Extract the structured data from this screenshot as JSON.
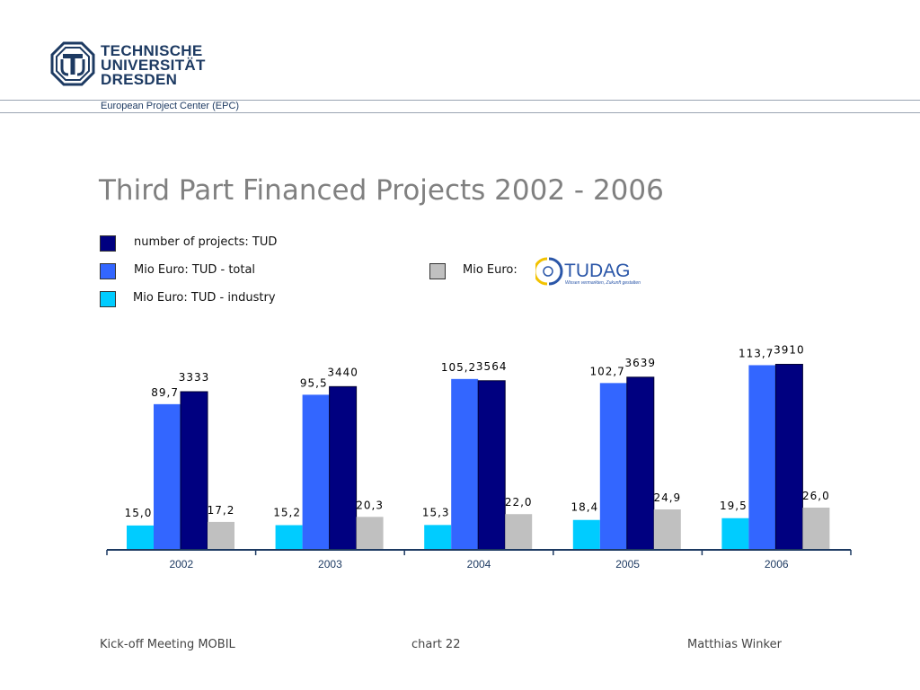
{
  "header": {
    "university_lines": [
      "TECHNISCHE",
      "UNIVERSITÄT",
      "DRESDEN"
    ],
    "department": "European Project Center (EPC)"
  },
  "title": "Third Part Financed Projects 2002 - 2006",
  "legend": [
    {
      "label": "number of projects: TUD",
      "color": "#000080"
    },
    {
      "label": "Mio Euro: TUD - total",
      "color": "#3366ff"
    },
    {
      "label": "Mio Euro: TUD - industry",
      "color": "#00ccff"
    },
    {
      "label": "Mio Euro:",
      "color": "#c0c0c0"
    }
  ],
  "tudag_logo": {
    "name": "TUDAG",
    "tagline": "Wissen vermarkten, Zukunft gestalten"
  },
  "chart_data": {
    "type": "bar",
    "categories": [
      "2002",
      "2003",
      "2004",
      "2005",
      "2006"
    ],
    "series": [
      {
        "name": "Mio Euro: TUD - industry",
        "color": "#00ccff",
        "values": [
          15.0,
          15.2,
          15.3,
          18.4,
          19.5
        ],
        "labels": [
          "15,0",
          "15,2",
          "15,3",
          "18,4",
          "19,5"
        ]
      },
      {
        "name": "Mio Euro: TUD - total",
        "color": "#3366ff",
        "values": [
          89.7,
          95.5,
          105.2,
          102.7,
          113.7
        ],
        "labels": [
          "89,7",
          "95,5",
          "105,2",
          "102,7",
          "113,7"
        ]
      },
      {
        "name": "number of projects: TUD",
        "color": "#000080",
        "values": [
          3333,
          3440,
          3564,
          3639,
          3910
        ],
        "labels": [
          "3333",
          "3440",
          "3564",
          "3639",
          "3910"
        ]
      },
      {
        "name": "Mio Euro:",
        "color": "#c0c0c0",
        "values": [
          17.2,
          20.3,
          22.0,
          24.9,
          26.0
        ],
        "labels": [
          "17,2",
          "20,3",
          "22,0",
          "24,9",
          "26,0"
        ]
      }
    ],
    "ylim": [
      0,
      130
    ],
    "projects_ylim": [
      0,
      4450
    ],
    "grid": false
  },
  "footer": {
    "left": "Kick-off Meeting MOBIL",
    "center": "chart 22",
    "right": "Matthias Winker"
  }
}
